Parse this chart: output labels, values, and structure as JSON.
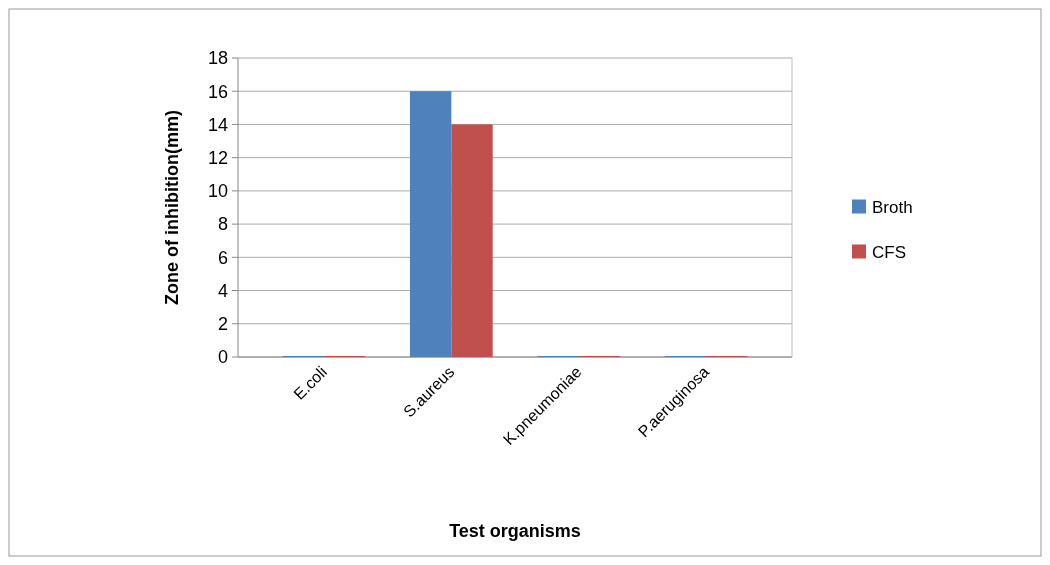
{
  "chart_data": {
    "type": "bar",
    "xlabel": "Test organisms",
    "ylabel": "Zone of inhibition(mm)",
    "categories": [
      "E.coli",
      "S.aureus",
      "K.pneumoniae",
      "P.aeruginosa"
    ],
    "series": [
      {
        "name": "Broth",
        "color": "#4f81bd",
        "values": [
          0,
          16,
          0,
          0
        ]
      },
      {
        "name": "CFS",
        "color": "#c0504d",
        "values": [
          0,
          14,
          0,
          0
        ]
      }
    ],
    "ylim": [
      0,
      18
    ],
    "yticks": [
      0,
      2,
      4,
      6,
      8,
      10,
      12,
      14,
      16,
      18
    ],
    "grid": "y",
    "legend": "right"
  }
}
